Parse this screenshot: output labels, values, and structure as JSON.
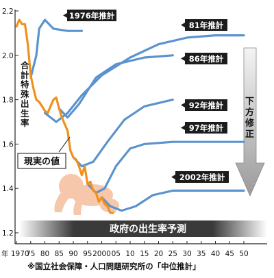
{
  "chart_data": {
    "type": "line",
    "ylabel": "合計特殊出生率",
    "xlim": [
      1970,
      2050
    ],
    "ylim": [
      1.2,
      2.2
    ],
    "y_ticks": [
      "2.2",
      "2.0",
      "1.8",
      "1.6",
      "1.4",
      "1.2"
    ],
    "x_ticks": [
      "年 1970",
      "75",
      "80",
      "85",
      "90",
      "95",
      "2000",
      "05",
      "10",
      "15",
      "20",
      "25",
      "30",
      "35",
      "40",
      "45",
      "50"
    ],
    "banner": "政府の出生率予測",
    "revision_label": "下方修正",
    "note": "※国立社会保障・人口問題研究所の「中位推計」",
    "actual": {
      "name": "現実の値",
      "color": "#f0901e",
      "x": [
        1970,
        1971,
        1972,
        1973,
        1974,
        1975,
        1976,
        1977,
        1978,
        1979,
        1980,
        1981,
        1982,
        1983,
        1984,
        1985,
        1986,
        1987,
        1988,
        1989,
        1990,
        1991,
        1992,
        1993,
        1994,
        1995,
        1996,
        1997,
        1998,
        1999,
        2000,
        2001,
        2002,
        2003,
        2004
      ],
      "y": [
        2.13,
        2.16,
        2.14,
        2.14,
        2.05,
        1.91,
        1.85,
        1.8,
        1.79,
        1.77,
        1.75,
        1.74,
        1.77,
        1.8,
        1.81,
        1.76,
        1.72,
        1.69,
        1.66,
        1.57,
        1.54,
        1.53,
        1.5,
        1.46,
        1.5,
        1.42,
        1.43,
        1.39,
        1.38,
        1.34,
        1.36,
        1.33,
        1.32,
        1.29,
        1.29
      ]
    },
    "series": [
      {
        "name": "1976年推計",
        "x": [
          1975,
          1977,
          1978,
          1980,
          1983,
          1988,
          1993
        ],
        "y": [
          1.9,
          2.0,
          2.12,
          2.16,
          2.12,
          2.11,
          2.11
        ]
      },
      {
        "name": "81年推計",
        "x": [
          1980,
          1984,
          1988,
          1993,
          2000,
          2010,
          2020,
          2030,
          2040,
          2050
        ],
        "y": [
          1.74,
          1.7,
          1.74,
          1.82,
          1.91,
          1.99,
          2.05,
          2.08,
          2.09,
          2.09
        ]
      },
      {
        "name": "86年推計",
        "x": [
          1985,
          1988,
          1992,
          1998,
          2005,
          2015,
          2025
        ],
        "y": [
          1.76,
          1.72,
          1.78,
          1.9,
          1.96,
          1.99,
          2.0
        ]
      },
      {
        "name": "92年推計",
        "x": [
          1990,
          1993,
          1997,
          2002,
          2008,
          2015,
          2025
        ],
        "y": [
          1.54,
          1.5,
          1.52,
          1.61,
          1.71,
          1.77,
          1.8
        ]
      },
      {
        "name": "97年推計",
        "x": [
          1995,
          1998,
          2001,
          2005,
          2010,
          2015,
          2025,
          2050
        ],
        "y": [
          1.42,
          1.38,
          1.4,
          1.5,
          1.58,
          1.6,
          1.61,
          1.61
        ]
      },
      {
        "name": "2002年推計",
        "x": [
          2000,
          2003,
          2007,
          2012,
          2018,
          2025,
          2050
        ],
        "y": [
          1.36,
          1.32,
          1.3,
          1.32,
          1.37,
          1.39,
          1.39
        ]
      }
    ],
    "projection_color": "#5b93cf"
  }
}
